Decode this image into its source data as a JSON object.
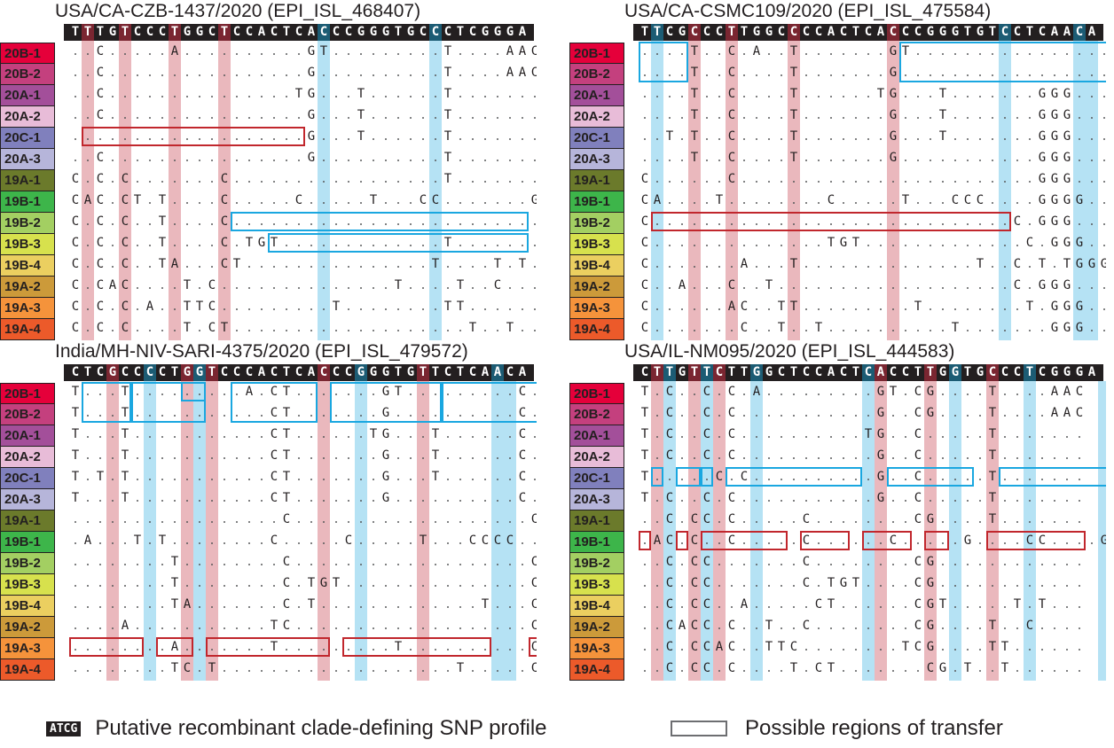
{
  "clades": [
    {
      "label": "20B-1",
      "color": "#e5003a"
    },
    {
      "label": "20B-2",
      "color": "#c4407e"
    },
    {
      "label": "20A-1",
      "color": "#a34f9a"
    },
    {
      "label": "20A-2",
      "color": "#e8bcd8"
    },
    {
      "label": "20C-1",
      "color": "#8080bd"
    },
    {
      "label": "20A-3",
      "color": "#b6b5da"
    },
    {
      "label": "19A-1",
      "color": "#6b7a2b"
    },
    {
      "label": "19B-1",
      "color": "#3db54a"
    },
    {
      "label": "19B-2",
      "color": "#a3cf62"
    },
    {
      "label": "19B-3",
      "color": "#d7e14d"
    },
    {
      "label": "19B-4",
      "color": "#ebcf60"
    },
    {
      "label": "19A-2",
      "color": "#cc9a3a"
    },
    {
      "label": "19A-3",
      "color": "#f5933b"
    },
    {
      "label": "19A-4",
      "color": "#ec5a2a"
    }
  ],
  "panels": [
    {
      "title": "USA/CA-CZB-1437/2020 (EPI_ISL_468407)",
      "sequence": "TTTGTCCCTGGCTCCACTCACCCGGGTGCCCTCGGGA",
      "hl_red": [
        1,
        4,
        8,
        12
      ],
      "hl_blue": [
        20,
        29
      ],
      "band_red": [
        1,
        4,
        8,
        12
      ],
      "band_blue": [
        20,
        29
      ],
      "rows": [
        "..C.....A..........GT.........T....AAC",
        "..C................G..........T....AAC",
        "..C...............TG...T......T.......",
        "..C................G...T......T.......",
        "...................G...T......T.......",
        "..C................G..........T.......",
        "C.C.C.......C.................T.......",
        "CAC.CT.T....C.....C.....T...CC.......G",
        "C.C.C..T....C.........................",
        "C.C.C..T....C.TGT.............T.......",
        "C.C.C..TA...CT...............T....T.T.",
        "C.CAC....T.C..............T....T..C...",
        "C.C.C.A..TTC.........T........TT......",
        "C.C.C....T.CT...................T..T.."
      ],
      "boxes": [
        {
          "c": "red",
          "x1": 1,
          "x2": 19,
          "r1": 4,
          "r2": 4
        },
        {
          "c": "blue",
          "x1": 13,
          "x2": 37,
          "r1": 8,
          "r2": 8
        },
        {
          "c": "blue",
          "x1": 16,
          "x2": 37,
          "r1": 9,
          "r2": 9
        }
      ]
    },
    {
      "title": "USA/CA-CSMC109/2020 (EPI_ISL_475584)",
      "sequence": "TTCGCCCTTGGCCCCACTCACCCGGGTGTCCTCAACA",
      "hl_red": [
        4,
        7,
        12,
        20
      ],
      "hl_blue": [
        1,
        29,
        35
      ],
      "band_red": [
        4,
        7,
        12,
        20
      ],
      "band_blue": [
        1,
        29,
        35,
        36
      ],
      "rows": [
        "....T..C.A..T.......GT................",
        "....T..C....T.......G.................",
        "....T..C....T......TG...T.......GGG...",
        "....T..C....T.......G...T.......GGG...",
        "..T.T..C....T.......G...T.......GGG...",
        "....T..C....T.......G...........GGG...",
        "C......C........................GGG...",
        "CA....T........C.....T...CCC....GGGG..",
        "C.............................C.GGG...",
        "C..............TGT.............C.GGG..",
        "C.......A...T..............T..C.T.TGGG",
        "C..A...C..T...................C.GGG...",
        "C......AC..TT.........T........T.GGG..",
        "C.......C..T..T..........T.......GGG.."
      ],
      "boxes": [
        {
          "c": "blue",
          "x1": 0,
          "x2": 4,
          "r1": 0,
          "r2": 1
        },
        {
          "c": "blue",
          "x1": 21,
          "x2": 38,
          "r1": 0,
          "r2": 1
        },
        {
          "c": "red",
          "x1": 1,
          "x2": 30,
          "r1": 8,
          "r2": 8
        }
      ]
    },
    {
      "title": "India/MH-NIV-SARI-4375/2020 (EPI_ISL_479572)",
      "sequence": "CTCGCCCCTGGTCCCACTCACCCGGGTGTTCTCAACA",
      "hl_red": [
        3,
        9,
        11,
        20,
        28
      ],
      "hl_blue": [
        6,
        10,
        23,
        34
      ],
      "band_red": [
        3,
        9,
        11,
        20,
        28
      ],
      "band_blue": [
        6,
        10,
        23,
        34,
        35
      ],
      "rows": [
        "T...T.........A.CT.......GT.........C.......",
        "T...T...........CT.......G..........C.......",
        "T...T...........CT......TG...T......C...GGG.",
        "T...T...........CT.......G...T......C...GGG.",
        "T.T.T...........CT.......G...T......C...GGG.",
        "T...T...........CT.......G..........C...GGG.",
        ".................C...................C...GGG.",
        ".A...T.T........C.....C.....T...CCCC...GGGG.",
        "........T........C...................CC.GGG.",
        "........T........C.TGT...............CC.GGG.",
        "........TA.......C.T.............T...CCT.TGGG",
        "....A...........TC...................C.C.GGG.",
        "........A.......T.........T..........C.GGG..",
        "........TC.T...................T.....C..GGG."
      ],
      "boxes": [
        {
          "c": "blue",
          "x1": 1,
          "x2": 5,
          "r1": 0,
          "r2": 1
        },
        {
          "c": "blue",
          "x1": 5,
          "x2": 11,
          "r1": 0,
          "r2": 1
        },
        {
          "c": "blue",
          "x1": 9,
          "x2": 11,
          "r1": 0,
          "r2": 0
        },
        {
          "c": "blue",
          "x1": 13,
          "x2": 20,
          "r1": 0,
          "r2": 1
        },
        {
          "c": "blue",
          "x1": 21,
          "x2": 30,
          "r1": 0,
          "r2": 1
        },
        {
          "c": "blue",
          "x1": 30,
          "x2": 38,
          "r1": 0,
          "r2": 1
        },
        {
          "c": "red",
          "x1": 0,
          "x2": 6,
          "r1": 12,
          "r2": 12
        },
        {
          "c": "red",
          "x1": 7,
          "x2": 10,
          "r1": 12,
          "r2": 12
        },
        {
          "c": "red",
          "x1": 11,
          "x2": 21,
          "r1": 12,
          "r2": 12
        },
        {
          "c": "red",
          "x1": 22,
          "x2": 34,
          "r1": 12,
          "r2": 12
        },
        {
          "c": "red",
          "x1": 37,
          "x2": 38,
          "r1": 12,
          "r2": 12
        }
      ]
    },
    {
      "title": "USA/IL-NM095/2020 (EPI_ISL_444583)",
      "sequence": "CTTGTTCTTGGCTCCACTCACCTTGGTGCCCTCGGGA",
      "hl_red": [
        1,
        4,
        6,
        19,
        23,
        28
      ],
      "hl_blue": [
        2,
        5,
        9,
        18,
        25,
        31
      ],
      "band_red": [
        1,
        4,
        6,
        19,
        23,
        28
      ],
      "band_blue": [
        2,
        5,
        9,
        18,
        25,
        31,
        37
      ],
      "rows": [
        "T.C..C.C.A.........GT.CG....T....AAC",
        "T.C..C.C...........G..CG....T....AAC",
        "T.C..C.C..........TG..C.....T.......",
        "T.C..C.C...........G..C.....T.......",
        "T.....C.C..........G..C.....T.......",
        "T.C..C.C...........G..C.....T.......",
        "..C.CC.C.....C........CG....T.......",
        ".AC.C..C.....C......C.....G....CC....G",
        "..C.CC.......C........CG............",
        "..C.CC.......C.TGT....CG............",
        "..C.CC..A.....CT......CGT.....T.T...",
        "..CACC.C..T..C........CG....T..C....",
        "..C.CCAC..TTC........TCG....TT......",
        "..C.CC.C....T.CT.......CG.T..T......"
      ],
      "boxes": [
        {
          "c": "blue",
          "x1": 1,
          "x2": 2,
          "r1": 4,
          "r2": 4
        },
        {
          "c": "blue",
          "x1": 3,
          "x2": 5,
          "r1": 4,
          "r2": 4
        },
        {
          "c": "blue",
          "x1": 5,
          "x2": 6,
          "r1": 4,
          "r2": 4
        },
        {
          "c": "blue",
          "x1": 7,
          "x2": 18,
          "r1": 4,
          "r2": 4
        },
        {
          "c": "blue",
          "x1": 20,
          "x2": 27,
          "r1": 4,
          "r2": 4
        },
        {
          "c": "blue",
          "x1": 29,
          "x2": 38,
          "r1": 4,
          "r2": 4
        },
        {
          "c": "red",
          "x1": 0,
          "x2": 1,
          "r1": 7,
          "r2": 7
        },
        {
          "c": "red",
          "x1": 3,
          "x2": 4,
          "r1": 7,
          "r2": 7
        },
        {
          "c": "red",
          "x1": 5,
          "x2": 12,
          "r1": 7,
          "r2": 7
        },
        {
          "c": "red",
          "x1": 13,
          "x2": 17,
          "r1": 7,
          "r2": 7
        },
        {
          "c": "red",
          "x1": 18,
          "x2": 22,
          "r1": 7,
          "r2": 7
        },
        {
          "c": "red",
          "x1": 23,
          "x2": 25,
          "r1": 7,
          "r2": 7
        },
        {
          "c": "red",
          "x1": 28,
          "x2": 36,
          "r1": 7,
          "r2": 7
        }
      ]
    }
  ],
  "legend": {
    "atcg_label": "ATCG",
    "recombinant_text": "Putative recombinant clade-defining SNP profile",
    "transfer_text": "Possible regions of transfer"
  }
}
